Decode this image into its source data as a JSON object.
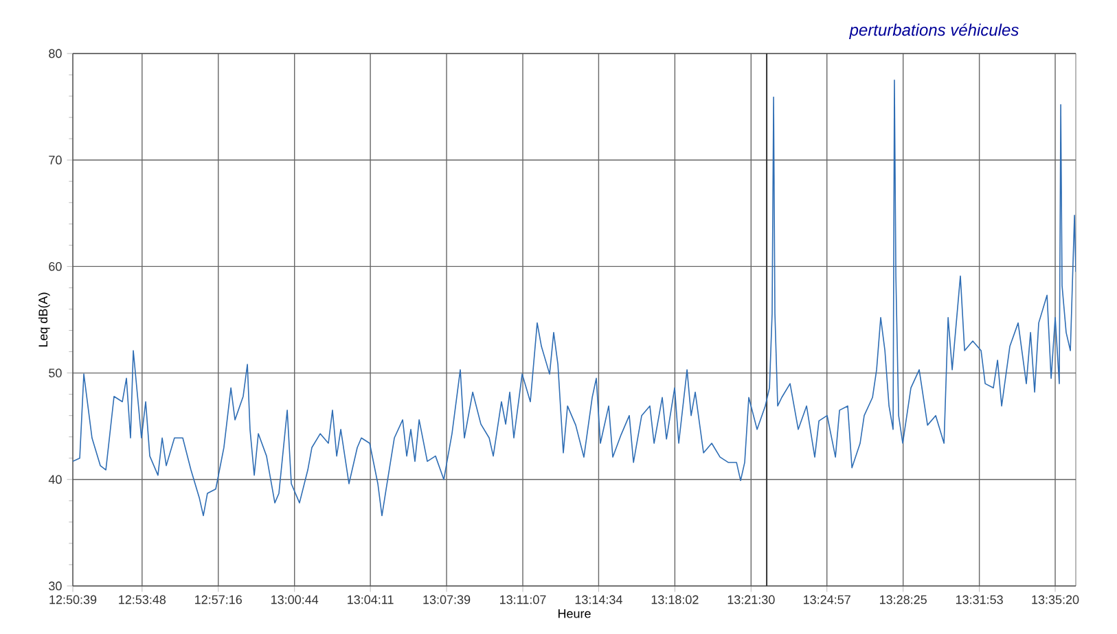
{
  "chart_data": {
    "type": "line",
    "xlabel": "Heure",
    "ylabel": "Leq dB(A)",
    "annotations": [
      "perturbations véhicules"
    ],
    "xlim": [
      12.84417,
      13.6045
    ],
    "ylim": [
      30,
      80
    ],
    "xticks": [
      {
        "value": 12.84417,
        "label": "12:50:39"
      },
      {
        "value": 12.89667,
        "label": "12:53:48"
      },
      {
        "value": 12.95444,
        "label": "12:57:16"
      },
      {
        "value": 13.01222,
        "label": "13:00:44"
      },
      {
        "value": 13.06972,
        "label": "13:04:11"
      },
      {
        "value": 13.1275,
        "label": "13:07:39"
      },
      {
        "value": 13.18528,
        "label": "13:11:07"
      },
      {
        "value": 13.24278,
        "label": "13:14:34"
      },
      {
        "value": 13.30056,
        "label": "13:18:02"
      },
      {
        "value": 13.35833,
        "label": "13:21:30"
      },
      {
        "value": 13.41583,
        "label": "13:24:57"
      },
      {
        "value": 13.47361,
        "label": "13:28:25"
      },
      {
        "value": 13.53139,
        "label": "13:31:53"
      },
      {
        "value": 13.58889,
        "label": "13:35:20"
      }
    ],
    "yticks": [
      30,
      40,
      50,
      60,
      70,
      80
    ],
    "grid": true,
    "marker": "none",
    "line_style": "solid",
    "ref_lines": [
      {
        "axis": "x",
        "value": 13.3702,
        "color": "#333333"
      }
    ],
    "series": [
      {
        "color": "#2e6db4",
        "x": [
          12.8442,
          12.8494,
          12.8525,
          12.8587,
          12.865,
          12.8692,
          12.8754,
          12.8817,
          12.8848,
          12.8879,
          12.89,
          12.8962,
          12.8994,
          12.9025,
          12.9087,
          12.9119,
          12.915,
          12.9212,
          12.9275,
          12.9337,
          12.94,
          12.9431,
          12.9462,
          12.9525,
          12.9587,
          12.964,
          12.9671,
          12.9733,
          12.9765,
          12.9785,
          12.9817,
          12.9848,
          12.991,
          12.9973,
          13.0004,
          13.0067,
          13.0098,
          13.016,
          13.0223,
          13.0254,
          13.0317,
          13.0379,
          13.041,
          13.0442,
          13.0473,
          13.0535,
          13.0598,
          13.0629,
          13.0692,
          13.0754,
          13.0785,
          13.0817,
          13.0879,
          13.0942,
          13.0973,
          13.1004,
          13.1035,
          13.1067,
          13.1129,
          13.1191,
          13.1254,
          13.1316,
          13.1379,
          13.141,
          13.1473,
          13.1535,
          13.1598,
          13.1629,
          13.1691,
          13.1723,
          13.1754,
          13.1785,
          13.1848,
          13.191,
          13.1962,
          13.1994,
          13.2056,
          13.2087,
          13.2119,
          13.216,
          13.2192,
          13.2254,
          13.2316,
          13.2379,
          13.241,
          13.2441,
          13.2504,
          13.2535,
          13.2598,
          13.266,
          13.2692,
          13.2754,
          13.2816,
          13.2848,
          13.291,
          13.2942,
          13.3004,
          13.3035,
          13.3098,
          13.3129,
          13.316,
          13.3223,
          13.3285,
          13.3348,
          13.341,
          13.3473,
          13.3504,
          13.3535,
          13.3566,
          13.3629,
          13.3691,
          13.3723,
          13.3743,
          13.3754,
          13.3764,
          13.3785,
          13.3816,
          13.3879,
          13.3941,
          13.4004,
          13.4066,
          13.4098,
          13.416,
          13.4223,
          13.4254,
          13.4316,
          13.4348,
          13.441,
          13.4441,
          13.4504,
          13.4535,
          13.4566,
          13.4598,
          13.4629,
          13.466,
          13.467,
          13.4681,
          13.4702,
          13.4733,
          13.4795,
          13.4858,
          13.4921,
          13.4983,
          13.5046,
          13.5077,
          13.5108,
          13.517,
          13.5202,
          13.5264,
          13.5327,
          13.5358,
          13.542,
          13.5452,
          13.5483,
          13.5545,
          13.5608,
          13.567,
          13.5702,
          13.5733,
          13.5764,
          13.5827,
          13.5858,
          13.5889,
          13.592,
          13.5931,
          13.5941,
          13.5972,
          13.6004,
          13.6035,
          13.6045
        ],
        "values": [
          41.7,
          42,
          49.9,
          43.9,
          41.3,
          40.9,
          47.8,
          47.3,
          49.5,
          43.9,
          52.1,
          43.9,
          47.3,
          42.2,
          40.4,
          43.9,
          41.3,
          43.9,
          43.9,
          40.9,
          38.3,
          36.6,
          38.7,
          39.1,
          43,
          48.6,
          45.6,
          47.8,
          50.8,
          44.7,
          40.4,
          44.3,
          42.2,
          37.8,
          38.7,
          46.5,
          39.6,
          37.8,
          40.9,
          43,
          44.3,
          43.4,
          46.5,
          42.2,
          44.7,
          39.6,
          43,
          43.9,
          43.4,
          39.6,
          36.6,
          39.1,
          43.9,
          45.6,
          42.2,
          44.7,
          41.7,
          45.6,
          41.7,
          42.2,
          40,
          44.3,
          50.3,
          43.9,
          48.2,
          45.2,
          43.9,
          42.2,
          47.3,
          45.2,
          48.2,
          43.9,
          49.9,
          47.3,
          54.7,
          52.5,
          49.9,
          53.8,
          50.8,
          42.5,
          46.9,
          45.1,
          42.1,
          47.7,
          49.5,
          43.4,
          46.9,
          42.1,
          44.2,
          46,
          41.6,
          46,
          46.9,
          43.4,
          47.7,
          43.8,
          48.6,
          43.4,
          50.3,
          46,
          48.2,
          42.5,
          43.4,
          42.1,
          41.6,
          41.6,
          39.9,
          41.6,
          47.7,
          44.7,
          46.9,
          48.6,
          55.6,
          75.9,
          55.6,
          46.9,
          47.7,
          49,
          44.7,
          46.9,
          42.1,
          45.5,
          46,
          42.1,
          46.5,
          46.9,
          41.1,
          43.4,
          46,
          47.7,
          50.3,
          55.2,
          52.1,
          46.9,
          44.7,
          77.5,
          59.1,
          46,
          43.4,
          48.6,
          50.3,
          45.1,
          46,
          43.4,
          55.2,
          50.3,
          59.1,
          52.1,
          53,
          52.1,
          49,
          48.6,
          51.2,
          46.9,
          52.5,
          54.7,
          49,
          53.8,
          48.2,
          54.7,
          57.3,
          49.5,
          55.2,
          49,
          75.2,
          58.2,
          53.8,
          52.1,
          64.8,
          59.5
        ]
      }
    ]
  }
}
